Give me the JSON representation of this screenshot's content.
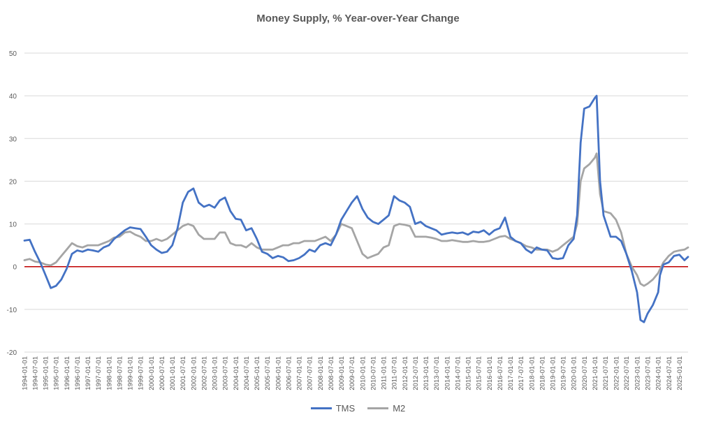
{
  "chart_data": {
    "type": "line",
    "title": "Money Supply, % Year-over-Year Change",
    "xlabel": "",
    "ylabel": "",
    "ylim": [
      -20,
      50
    ],
    "yticks": [
      -20,
      -10,
      0,
      10,
      20,
      30,
      40,
      50
    ],
    "xlim": [
      "1994-01-01",
      "2025-06-01"
    ],
    "x_tick_labels": [
      "1994-01-01",
      "1994-07-01",
      "1995-01-01",
      "1995-07-01",
      "1996-01-01",
      "1996-07-01",
      "1997-01-01",
      "1997-07-01",
      "1998-01-01",
      "1998-07-01",
      "1999-01-01",
      "1999-07-01",
      "2000-01-01",
      "2000-07-01",
      "2001-01-01",
      "2001-07-01",
      "2002-01-01",
      "2002-07-01",
      "2003-01-01",
      "2003-07-01",
      "2004-01-01",
      "2004-07-01",
      "2005-01-01",
      "2005-07-01",
      "2006-01-01",
      "2006-07-01",
      "2007-01-01",
      "2007-07-01",
      "2008-01-01",
      "2008-07-01",
      "2009-01-01",
      "2009-07-01",
      "2010-01-01",
      "2010-07-01",
      "2011-01-01",
      "2011-07-01",
      "2012-01-01",
      "2012-07-01",
      "2013-01-01",
      "2013-07-01",
      "2014-01-01",
      "2014-07-01",
      "2015-01-01",
      "2015-07-01",
      "2016-01-01",
      "2016-07-01",
      "2017-01-01",
      "2017-07-01",
      "2018-01-01",
      "2018-07-01",
      "2019-01-01",
      "2019-07-01",
      "2020-01-01",
      "2020-07-01",
      "2021-01-01",
      "2021-07-01",
      "2022-01-01",
      "2022-07-01",
      "2023-01-01",
      "2023-07-01",
      "2024-01-01",
      "2024-07-01",
      "2025-01-01"
    ],
    "grid": true,
    "legend_position": "bottom",
    "zero_line_color": "#C00000",
    "series": [
      {
        "name": "TMS",
        "color": "#4472C4",
        "points": [
          [
            "1994-01-01",
            6.1
          ],
          [
            "1994-04-01",
            6.3
          ],
          [
            "1994-07-01",
            3.5
          ],
          [
            "1994-10-01",
            1.0
          ],
          [
            "1995-01-01",
            -2.0
          ],
          [
            "1995-04-01",
            -5.0
          ],
          [
            "1995-07-01",
            -4.5
          ],
          [
            "1995-10-01",
            -3.0
          ],
          [
            "1996-01-01",
            -0.5
          ],
          [
            "1996-04-01",
            3.0
          ],
          [
            "1996-07-01",
            3.8
          ],
          [
            "1996-10-01",
            3.5
          ],
          [
            "1997-01-01",
            4.0
          ],
          [
            "1997-04-01",
            3.8
          ],
          [
            "1997-07-01",
            3.5
          ],
          [
            "1997-10-01",
            4.5
          ],
          [
            "1998-01-01",
            5.0
          ],
          [
            "1998-04-01",
            6.5
          ],
          [
            "1998-07-01",
            7.5
          ],
          [
            "1998-10-01",
            8.5
          ],
          [
            "1999-01-01",
            9.2
          ],
          [
            "1999-04-01",
            9.0
          ],
          [
            "1999-07-01",
            8.8
          ],
          [
            "1999-10-01",
            7.0
          ],
          [
            "2000-01-01",
            5.0
          ],
          [
            "2000-04-01",
            4.0
          ],
          [
            "2000-07-01",
            3.2
          ],
          [
            "2000-10-01",
            3.5
          ],
          [
            "2001-01-01",
            5.0
          ],
          [
            "2001-04-01",
            9.0
          ],
          [
            "2001-07-01",
            15.0
          ],
          [
            "2001-10-01",
            17.5
          ],
          [
            "2002-01-01",
            18.3
          ],
          [
            "2002-04-01",
            15.0
          ],
          [
            "2002-07-01",
            14.0
          ],
          [
            "2002-10-01",
            14.5
          ],
          [
            "2003-01-01",
            13.8
          ],
          [
            "2003-04-01",
            15.5
          ],
          [
            "2003-07-01",
            16.2
          ],
          [
            "2003-10-01",
            13.0
          ],
          [
            "2004-01-01",
            11.2
          ],
          [
            "2004-04-01",
            11.0
          ],
          [
            "2004-07-01",
            8.5
          ],
          [
            "2004-10-01",
            9.0
          ],
          [
            "2005-01-01",
            6.5
          ],
          [
            "2005-04-01",
            3.5
          ],
          [
            "2005-07-01",
            3.0
          ],
          [
            "2005-10-01",
            2.0
          ],
          [
            "2006-01-01",
            2.5
          ],
          [
            "2006-04-01",
            2.2
          ],
          [
            "2006-07-01",
            1.3
          ],
          [
            "2006-10-01",
            1.5
          ],
          [
            "2007-01-01",
            2.0
          ],
          [
            "2007-04-01",
            2.8
          ],
          [
            "2007-07-01",
            4.0
          ],
          [
            "2007-10-01",
            3.5
          ],
          [
            "2008-01-01",
            5.0
          ],
          [
            "2008-04-01",
            5.5
          ],
          [
            "2008-07-01",
            5.0
          ],
          [
            "2008-10-01",
            7.5
          ],
          [
            "2009-01-01",
            11.0
          ],
          [
            "2009-04-01",
            13.0
          ],
          [
            "2009-07-01",
            15.0
          ],
          [
            "2009-10-01",
            16.5
          ],
          [
            "2010-01-01",
            13.5
          ],
          [
            "2010-04-01",
            11.5
          ],
          [
            "2010-07-01",
            10.5
          ],
          [
            "2010-10-01",
            10.0
          ],
          [
            "2011-01-01",
            11.0
          ],
          [
            "2011-04-01",
            12.0
          ],
          [
            "2011-07-01",
            16.5
          ],
          [
            "2011-10-01",
            15.5
          ],
          [
            "2012-01-01",
            15.0
          ],
          [
            "2012-04-01",
            14.0
          ],
          [
            "2012-07-01",
            10.0
          ],
          [
            "2012-10-01",
            10.5
          ],
          [
            "2013-01-01",
            9.5
          ],
          [
            "2013-04-01",
            9.0
          ],
          [
            "2013-07-01",
            8.5
          ],
          [
            "2013-10-01",
            7.5
          ],
          [
            "2014-01-01",
            7.8
          ],
          [
            "2014-04-01",
            8.0
          ],
          [
            "2014-07-01",
            7.8
          ],
          [
            "2014-10-01",
            8.0
          ],
          [
            "2015-01-01",
            7.5
          ],
          [
            "2015-04-01",
            8.2
          ],
          [
            "2015-07-01",
            8.0
          ],
          [
            "2015-10-01",
            8.5
          ],
          [
            "2016-01-01",
            7.5
          ],
          [
            "2016-04-01",
            8.5
          ],
          [
            "2016-07-01",
            9.0
          ],
          [
            "2016-10-01",
            11.5
          ],
          [
            "2017-01-01",
            7.0
          ],
          [
            "2017-04-01",
            6.0
          ],
          [
            "2017-07-01",
            5.5
          ],
          [
            "2017-10-01",
            4.0
          ],
          [
            "2018-01-01",
            3.2
          ],
          [
            "2018-04-01",
            4.5
          ],
          [
            "2018-07-01",
            4.0
          ],
          [
            "2018-10-01",
            3.8
          ],
          [
            "2019-01-01",
            2.0
          ],
          [
            "2019-04-01",
            1.8
          ],
          [
            "2019-07-01",
            2.0
          ],
          [
            "2019-10-01",
            5.0
          ],
          [
            "2020-01-01",
            6.5
          ],
          [
            "2020-03-01",
            12.0
          ],
          [
            "2020-05-01",
            29.0
          ],
          [
            "2020-07-01",
            37.0
          ],
          [
            "2020-10-01",
            37.5
          ],
          [
            "2021-01-01",
            39.5
          ],
          [
            "2021-02-01",
            40.0
          ],
          [
            "2021-04-01",
            20.0
          ],
          [
            "2021-06-01",
            12.0
          ],
          [
            "2021-10-01",
            7.0
          ],
          [
            "2022-01-01",
            7.0
          ],
          [
            "2022-04-01",
            6.0
          ],
          [
            "2022-07-01",
            3.0
          ],
          [
            "2022-10-01",
            -1.0
          ],
          [
            "2023-01-01",
            -6.0
          ],
          [
            "2023-03-01",
            -12.5
          ],
          [
            "2023-05-01",
            -13.0
          ],
          [
            "2023-07-01",
            -11.0
          ],
          [
            "2023-10-01",
            -9.0
          ],
          [
            "2024-01-01",
            -6.0
          ],
          [
            "2024-02-01",
            -2.0
          ],
          [
            "2024-04-01",
            0.5
          ],
          [
            "2024-07-01",
            1.0
          ],
          [
            "2024-10-01",
            2.5
          ],
          [
            "2025-01-01",
            2.8
          ],
          [
            "2025-04-01",
            1.5
          ],
          [
            "2025-06-01",
            2.3
          ]
        ]
      },
      {
        "name": "M2",
        "color": "#A5A5A5",
        "points": [
          [
            "1994-01-01",
            1.5
          ],
          [
            "1994-04-01",
            1.8
          ],
          [
            "1994-07-01",
            1.2
          ],
          [
            "1994-10-01",
            1.0
          ],
          [
            "1995-01-01",
            0.5
          ],
          [
            "1995-04-01",
            0.3
          ],
          [
            "1995-07-01",
            1.0
          ],
          [
            "1995-10-01",
            2.5
          ],
          [
            "1996-01-01",
            4.0
          ],
          [
            "1996-04-01",
            5.5
          ],
          [
            "1996-07-01",
            4.8
          ],
          [
            "1996-10-01",
            4.5
          ],
          [
            "1997-01-01",
            5.0
          ],
          [
            "1997-04-01",
            5.0
          ],
          [
            "1997-07-01",
            5.0
          ],
          [
            "1997-10-01",
            5.5
          ],
          [
            "1998-01-01",
            6.0
          ],
          [
            "1998-04-01",
            6.8
          ],
          [
            "1998-07-01",
            7.0
          ],
          [
            "1998-10-01",
            8.0
          ],
          [
            "1999-01-01",
            8.2
          ],
          [
            "1999-04-01",
            7.5
          ],
          [
            "1999-07-01",
            7.0
          ],
          [
            "1999-10-01",
            6.0
          ],
          [
            "2000-01-01",
            6.0
          ],
          [
            "2000-04-01",
            6.5
          ],
          [
            "2000-07-01",
            6.0
          ],
          [
            "2000-10-01",
            6.5
          ],
          [
            "2001-01-01",
            7.5
          ],
          [
            "2001-04-01",
            8.5
          ],
          [
            "2001-07-01",
            9.5
          ],
          [
            "2001-10-01",
            10.0
          ],
          [
            "2002-01-01",
            9.5
          ],
          [
            "2002-04-01",
            7.5
          ],
          [
            "2002-07-01",
            6.5
          ],
          [
            "2002-10-01",
            6.5
          ],
          [
            "2003-01-01",
            6.5
          ],
          [
            "2003-04-01",
            8.0
          ],
          [
            "2003-07-01",
            8.0
          ],
          [
            "2003-10-01",
            5.5
          ],
          [
            "2004-01-01",
            5.0
          ],
          [
            "2004-04-01",
            5.0
          ],
          [
            "2004-07-01",
            4.5
          ],
          [
            "2004-10-01",
            5.5
          ],
          [
            "2005-01-01",
            4.5
          ],
          [
            "2005-04-01",
            4.0
          ],
          [
            "2005-07-01",
            4.0
          ],
          [
            "2005-10-01",
            4.0
          ],
          [
            "2006-01-01",
            4.5
          ],
          [
            "2006-04-01",
            5.0
          ],
          [
            "2006-07-01",
            5.0
          ],
          [
            "2006-10-01",
            5.5
          ],
          [
            "2007-01-01",
            5.5
          ],
          [
            "2007-04-01",
            6.0
          ],
          [
            "2007-07-01",
            6.0
          ],
          [
            "2007-10-01",
            6.0
          ],
          [
            "2008-01-01",
            6.5
          ],
          [
            "2008-04-01",
            7.0
          ],
          [
            "2008-07-01",
            6.0
          ],
          [
            "2008-10-01",
            7.5
          ],
          [
            "2009-01-01",
            10.0
          ],
          [
            "2009-04-01",
            9.5
          ],
          [
            "2009-07-01",
            9.0
          ],
          [
            "2009-10-01",
            6.0
          ],
          [
            "2010-01-01",
            3.0
          ],
          [
            "2010-04-01",
            2.0
          ],
          [
            "2010-07-01",
            2.5
          ],
          [
            "2010-10-01",
            3.0
          ],
          [
            "2011-01-01",
            4.5
          ],
          [
            "2011-04-01",
            5.0
          ],
          [
            "2011-07-01",
            9.5
          ],
          [
            "2011-10-01",
            10.0
          ],
          [
            "2012-01-01",
            9.8
          ],
          [
            "2012-04-01",
            9.5
          ],
          [
            "2012-07-01",
            7.0
          ],
          [
            "2012-10-01",
            7.0
          ],
          [
            "2013-01-01",
            7.0
          ],
          [
            "2013-04-01",
            6.8
          ],
          [
            "2013-07-01",
            6.5
          ],
          [
            "2013-10-01",
            6.0
          ],
          [
            "2014-01-01",
            6.0
          ],
          [
            "2014-04-01",
            6.2
          ],
          [
            "2014-07-01",
            6.0
          ],
          [
            "2014-10-01",
            5.8
          ],
          [
            "2015-01-01",
            5.8
          ],
          [
            "2015-04-01",
            6.0
          ],
          [
            "2015-07-01",
            5.8
          ],
          [
            "2015-10-01",
            5.8
          ],
          [
            "2016-01-01",
            6.0
          ],
          [
            "2016-04-01",
            6.5
          ],
          [
            "2016-07-01",
            7.0
          ],
          [
            "2016-10-01",
            7.2
          ],
          [
            "2017-01-01",
            6.5
          ],
          [
            "2017-04-01",
            6.0
          ],
          [
            "2017-07-01",
            5.5
          ],
          [
            "2017-10-01",
            4.8
          ],
          [
            "2018-01-01",
            4.5
          ],
          [
            "2018-04-01",
            4.0
          ],
          [
            "2018-07-01",
            4.0
          ],
          [
            "2018-10-01",
            4.0
          ],
          [
            "2019-01-01",
            3.5
          ],
          [
            "2019-04-01",
            4.0
          ],
          [
            "2019-07-01",
            5.0
          ],
          [
            "2019-10-01",
            6.0
          ],
          [
            "2020-01-01",
            7.0
          ],
          [
            "2020-03-01",
            10.0
          ],
          [
            "2020-05-01",
            20.0
          ],
          [
            "2020-07-01",
            23.0
          ],
          [
            "2020-10-01",
            24.0
          ],
          [
            "2021-01-01",
            25.5
          ],
          [
            "2021-02-01",
            26.5
          ],
          [
            "2021-04-01",
            17.0
          ],
          [
            "2021-06-01",
            13.0
          ],
          [
            "2021-10-01",
            12.5
          ],
          [
            "2022-01-01",
            11.0
          ],
          [
            "2022-04-01",
            8.0
          ],
          [
            "2022-07-01",
            3.0
          ],
          [
            "2022-10-01",
            0.0
          ],
          [
            "2023-01-01",
            -2.0
          ],
          [
            "2023-03-01",
            -4.0
          ],
          [
            "2023-05-01",
            -4.5
          ],
          [
            "2023-07-01",
            -4.0
          ],
          [
            "2023-10-01",
            -3.0
          ],
          [
            "2024-01-01",
            -1.5
          ],
          [
            "2024-04-01",
            1.0
          ],
          [
            "2024-07-01",
            2.5
          ],
          [
            "2024-10-01",
            3.5
          ],
          [
            "2025-01-01",
            3.8
          ],
          [
            "2025-04-01",
            4.0
          ],
          [
            "2025-06-01",
            4.5
          ]
        ]
      }
    ]
  }
}
